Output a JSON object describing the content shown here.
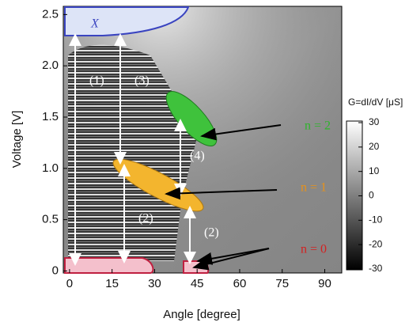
{
  "chart_data": {
    "type": "heatmap",
    "xlabel": "Angle [degree]",
    "ylabel": "Voltage [V]",
    "xlim": [
      -2.2,
      96
    ],
    "ylim": [
      -0.02,
      2.58
    ],
    "xticks": [
      0,
      15,
      30,
      45,
      60,
      75,
      90
    ],
    "yticks": [
      0,
      0.5,
      {
        "value": 1,
        "label": "1.0"
      },
      1.5,
      {
        "value": 2,
        "label": "2.0"
      },
      2.5
    ],
    "colorbar": {
      "label": "G=dI/dV [μS]",
      "clim": [
        -30,
        30
      ],
      "ticks": [
        -30,
        -20,
        -10,
        0,
        10,
        20,
        30
      ]
    },
    "annotations": [
      "X",
      "(1)",
      "(3)",
      "(4)",
      "(2)",
      "(2)",
      "n = 2",
      "n = 1",
      "n = 0"
    ]
  }
}
